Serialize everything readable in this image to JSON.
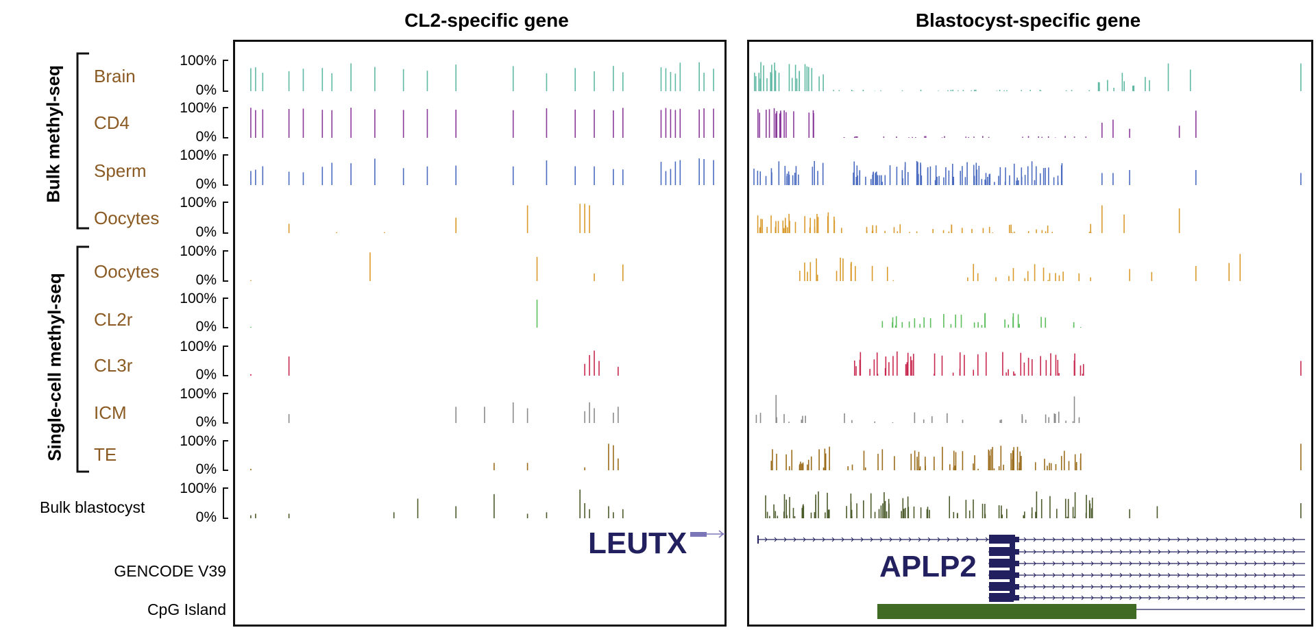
{
  "panels": [
    {
      "title": "CL2-specific gene",
      "gene": "LEUTX"
    },
    {
      "title": "Blastocyst-specific gene",
      "gene": "APLP2"
    }
  ],
  "groups": {
    "bulk": "Bulk methyl-seq",
    "single": "Single-cell methyl-seq"
  },
  "axis": {
    "top": "100%",
    "bottom": "0%"
  },
  "tracks": [
    {
      "label": "Brain",
      "group": "bulk",
      "color": "#5fb8a3"
    },
    {
      "label": "CD4",
      "group": "bulk",
      "color": "#8a3a9a"
    },
    {
      "label": "Sperm",
      "group": "bulk",
      "color": "#4a6bbf"
    },
    {
      "label": "Oocytes",
      "group": "bulk",
      "color": "#d99a2b"
    },
    {
      "label": "Oocytes",
      "group": "single",
      "color": "#d99a2b"
    },
    {
      "label": "CL2r",
      "group": "single",
      "color": "#5cbf5c"
    },
    {
      "label": "CL3r",
      "group": "single",
      "color": "#c8284e"
    },
    {
      "label": "ICM",
      "group": "single",
      "color": "#8a8a8a"
    },
    {
      "label": "TE",
      "group": "single",
      "color": "#9a6b1a"
    },
    {
      "label": "Bulk blastocyst",
      "group": "none",
      "color": "#4a5a2a"
    }
  ],
  "bottom_tracks": {
    "gencode": "GENCODE V39",
    "cpg": "CpG Island"
  },
  "colors": {
    "gene_model": "#22205e",
    "cpg_island": "#3f6b25",
    "frame": "#111111"
  }
}
